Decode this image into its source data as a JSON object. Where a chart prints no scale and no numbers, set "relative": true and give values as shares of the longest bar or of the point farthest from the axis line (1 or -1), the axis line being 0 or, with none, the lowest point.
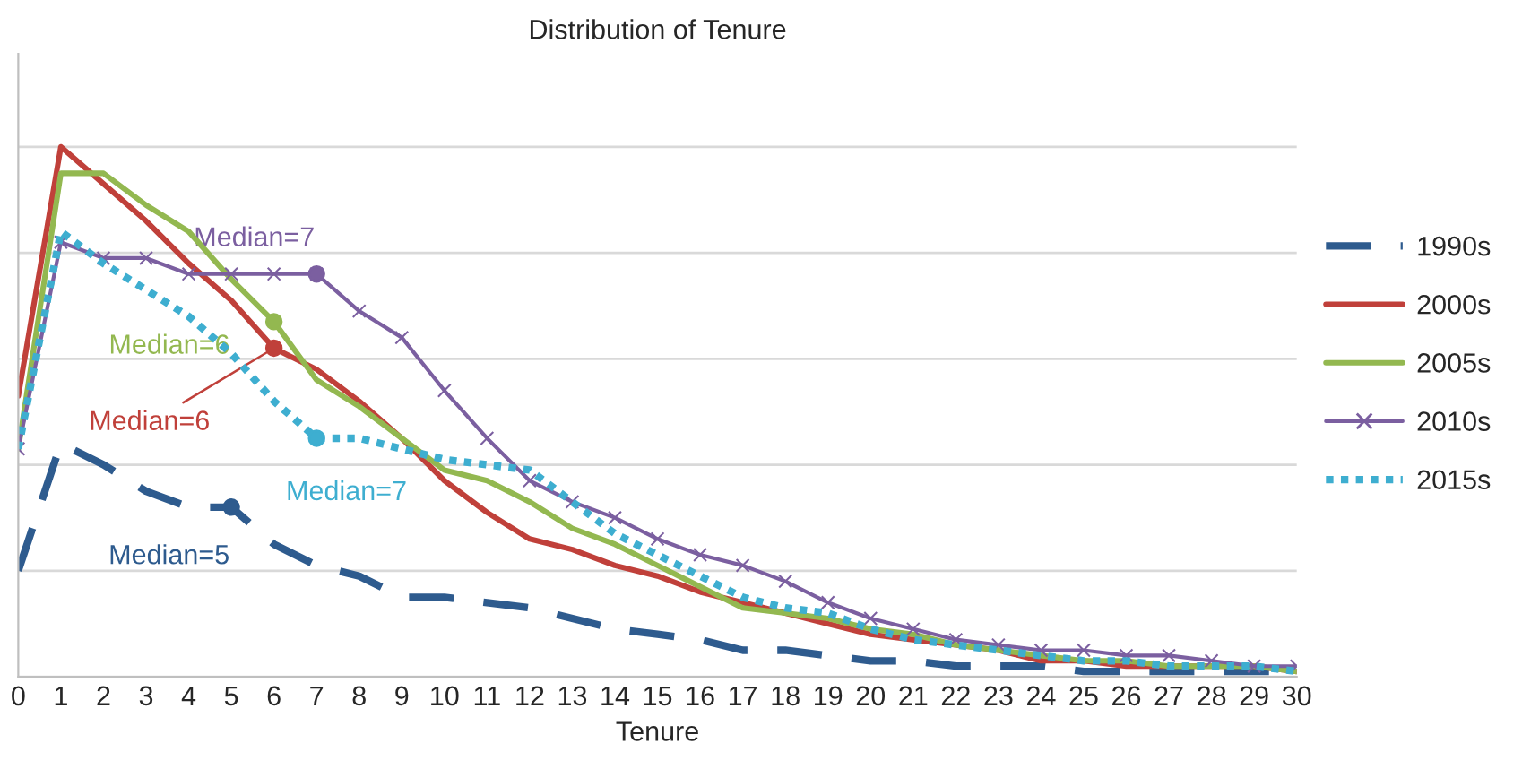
{
  "chart_data": {
    "type": "line",
    "title": "Distribution of Tenure",
    "xlabel": "Tenure",
    "relative": true,
    "grid": "y",
    "legend": "right",
    "tick_labels": "x",
    "x": [
      0,
      1,
      2,
      3,
      4,
      5,
      6,
      7,
      8,
      9,
      10,
      11,
      12,
      13,
      14,
      15,
      16,
      17,
      18,
      19,
      20,
      21,
      22,
      23,
      24,
      25,
      26,
      27,
      28,
      29,
      30
    ],
    "xlim": [
      0,
      30
    ],
    "xticks": [
      0,
      1,
      2,
      3,
      4,
      5,
      6,
      7,
      8,
      9,
      10,
      11,
      12,
      13,
      14,
      15,
      16,
      17,
      18,
      19,
      20,
      21,
      22,
      23,
      24,
      25,
      26,
      27,
      28,
      29,
      30
    ],
    "series": [
      {
        "name": "1990s",
        "color": "#2e5b8e",
        "line_style": "dashed",
        "marker": "none",
        "values": [
          0.2,
          0.44,
          0.4,
          0.35,
          0.32,
          0.32,
          0.25,
          0.21,
          0.19,
          0.15,
          0.15,
          0.14,
          0.13,
          0.11,
          0.09,
          0.08,
          0.07,
          0.05,
          0.05,
          0.04,
          0.03,
          0.03,
          0.02,
          0.02,
          0.02,
          0.01,
          0.01,
          0.01,
          0.01,
          0.01,
          0.01
        ]
      },
      {
        "name": "2000s",
        "color": "#c0403a",
        "line_style": "solid",
        "marker": "none",
        "values": [
          0.53,
          1.0,
          0.93,
          0.86,
          0.78,
          0.71,
          0.62,
          0.58,
          0.52,
          0.45,
          0.37,
          0.31,
          0.26,
          0.24,
          0.21,
          0.19,
          0.16,
          0.14,
          0.12,
          0.1,
          0.08,
          0.07,
          0.06,
          0.05,
          0.03,
          0.03,
          0.02,
          0.02,
          0.02,
          0.02,
          0.01
        ]
      },
      {
        "name": "2005s",
        "color": "#93b850",
        "line_style": "solid",
        "marker": "none",
        "values": [
          0.43,
          0.95,
          0.95,
          0.89,
          0.84,
          0.75,
          0.67,
          0.56,
          0.51,
          0.45,
          0.39,
          0.37,
          0.33,
          0.28,
          0.25,
          0.21,
          0.17,
          0.13,
          0.12,
          0.11,
          0.09,
          0.08,
          0.06,
          0.05,
          0.04,
          0.03,
          0.03,
          0.02,
          0.02,
          0.02,
          0.01
        ]
      },
      {
        "name": "2010s",
        "color": "#7b5fa0",
        "line_style": "solid",
        "marker": "cross",
        "values": [
          0.43,
          0.82,
          0.79,
          0.79,
          0.76,
          0.76,
          0.76,
          0.76,
          0.69,
          0.64,
          0.54,
          0.45,
          0.37,
          0.33,
          0.3,
          0.26,
          0.23,
          0.21,
          0.18,
          0.14,
          0.11,
          0.09,
          0.07,
          0.06,
          0.05,
          0.05,
          0.04,
          0.04,
          0.03,
          0.02,
          0.02
        ]
      },
      {
        "name": "2015s",
        "color": "#3eaed0",
        "line_style": "dotted",
        "marker": "none",
        "values": [
          0.43,
          0.84,
          0.78,
          0.73,
          0.68,
          0.61,
          0.52,
          0.45,
          0.45,
          0.43,
          0.41,
          0.4,
          0.39,
          0.33,
          0.27,
          0.23,
          0.19,
          0.15,
          0.13,
          0.12,
          0.09,
          0.07,
          0.06,
          0.05,
          0.04,
          0.03,
          0.03,
          0.02,
          0.02,
          0.02,
          0.01
        ]
      }
    ],
    "annotations": [
      {
        "text": "Median=7",
        "x": 7,
        "y": 0.76
      },
      {
        "text": "Median=6",
        "x": 6,
        "y": 0.67
      },
      {
        "text": "Median=6",
        "x": 6,
        "y": 0.62
      },
      {
        "text": "Median=7",
        "x": 7,
        "y": 0.45
      },
      {
        "text": "Median=5",
        "x": 5,
        "y": 0.32
      }
    ]
  }
}
